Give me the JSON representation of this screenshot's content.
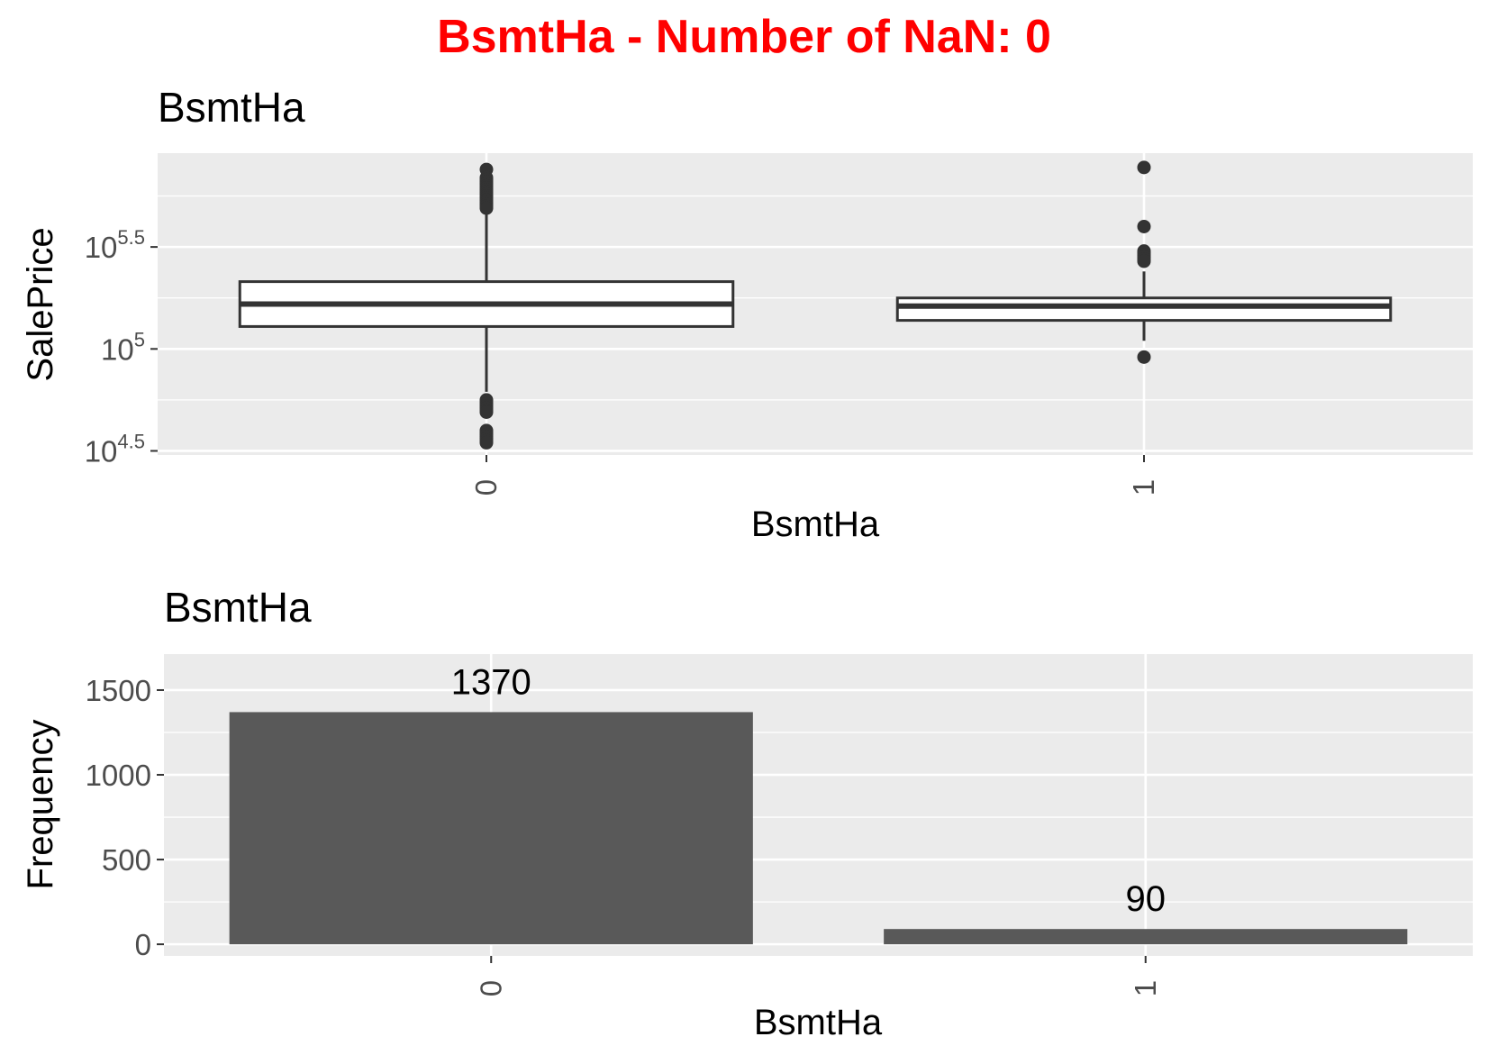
{
  "title": "BsmtHa - Number of NaN: 0",
  "colors": {
    "title": "#ff0000",
    "panel_background": "#ebebeb",
    "grid": "#ffffff",
    "box_outline": "#333333",
    "box_fill": "#ffffff",
    "bar_fill": "#595959"
  },
  "chart_data": [
    {
      "type": "boxplot",
      "title": "BsmtHa",
      "xlabel": "BsmtHa",
      "ylabel": "SalePrice",
      "yscale": "log10",
      "categories": [
        "0",
        "1"
      ],
      "y_ticks": [
        {
          "base": "10",
          "exp": "4.5",
          "log": 4.5
        },
        {
          "base": "10",
          "exp": "5",
          "log": 5
        },
        {
          "base": "10",
          "exp": "5.5",
          "log": 5.5
        }
      ],
      "ylim_log": [
        4.48,
        5.96
      ],
      "boxes": [
        {
          "category": "0",
          "q1_log": 5.11,
          "median_log": 5.22,
          "q3_log": 5.33,
          "whisker_low_log": 4.79,
          "whisker_high_log": 5.66,
          "outliers_log": [
            5.88,
            5.84,
            5.83,
            5.82,
            5.81,
            5.8,
            5.79,
            5.78,
            5.77,
            5.76,
            5.75,
            5.74,
            5.73,
            5.72,
            5.71,
            5.7,
            5.69,
            4.75,
            4.74,
            4.73,
            4.72,
            4.71,
            4.7,
            4.69,
            4.6,
            4.59,
            4.58,
            4.57,
            4.56,
            4.55,
            4.54
          ]
        },
        {
          "category": "1",
          "q1_log": 5.14,
          "median_log": 5.21,
          "q3_log": 5.25,
          "whisker_low_log": 5.04,
          "whisker_high_log": 5.38,
          "outliers_log": [
            5.89,
            5.6,
            5.48,
            5.47,
            5.46,
            5.45,
            5.44,
            5.43,
            4.96
          ]
        }
      ]
    },
    {
      "type": "bar",
      "title": "BsmtHa",
      "xlabel": "BsmtHa",
      "ylabel": "Frequency",
      "categories": [
        "0",
        "1"
      ],
      "values": [
        1370,
        90
      ],
      "value_labels": [
        "1370",
        "90"
      ],
      "y_ticks": [
        0,
        500,
        1000,
        1500
      ],
      "y_tick_labels": [
        "0",
        "500",
        "1000",
        "1500"
      ],
      "ylim": [
        -68.5,
        1712.5
      ]
    }
  ]
}
